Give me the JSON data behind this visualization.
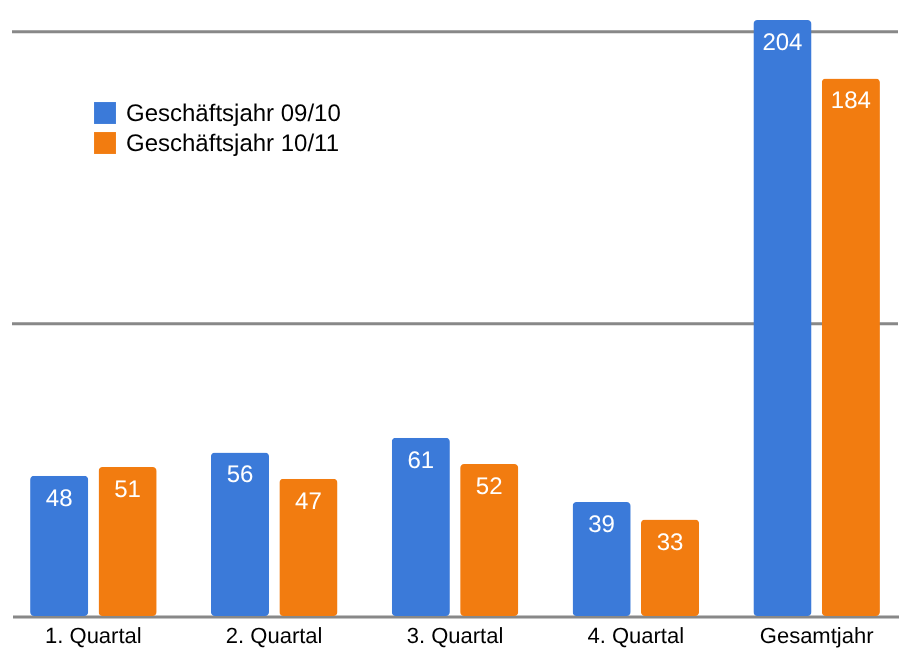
{
  "chart_data": {
    "type": "bar",
    "categories": [
      "1. Quartal",
      "2. Quartal",
      "3. Quartal",
      "4. Quartal",
      "Gesamtjahr"
    ],
    "series": [
      {
        "name": "Geschäftsjahr 09/10",
        "color": "#3b7ad9",
        "values": [
          48,
          56,
          61,
          39,
          204
        ]
      },
      {
        "name": "Geschäftsjahr 10/11",
        "color": "#f27c10",
        "values": [
          51,
          47,
          52,
          33,
          184
        ]
      }
    ],
    "ref_lines": [
      {
        "axis": "y",
        "value": 100,
        "color": "#888888"
      },
      {
        "axis": "y",
        "value": 200,
        "color": "#888888"
      }
    ],
    "legend": "top left",
    "data_labels": true,
    "tick_labels": "x"
  }
}
